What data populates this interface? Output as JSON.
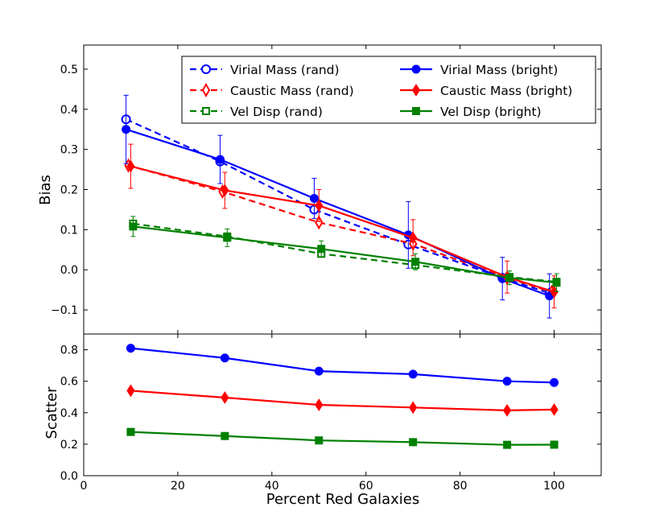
{
  "chart_data": [
    {
      "type": "line",
      "panel": "top",
      "ylabel": "Bias",
      "xlabel": "",
      "xlim": [
        0,
        110
      ],
      "ylim": [
        -0.16,
        0.56
      ],
      "xticks": [
        0,
        20,
        40,
        60,
        80,
        100
      ],
      "yticks": [
        -0.1,
        0.0,
        0.1,
        0.2,
        0.3,
        0.4,
        0.5
      ],
      "ytick_labels": [
        "−0.1",
        "0.0",
        "0.1",
        "0.2",
        "0.3",
        "0.4",
        "0.5"
      ],
      "legend_position": "top-right",
      "series": [
        {
          "name": "Virial Mass (rand)",
          "color": "#0000ff",
          "style": "dashed",
          "marker": "circle-open",
          "x": [
            9,
            29,
            49,
            69,
            89,
            99
          ],
          "y": [
            0.375,
            0.27,
            0.15,
            0.063,
            -0.02,
            -0.058
          ]
        },
        {
          "name": "Caustic Mass (rand)",
          "color": "#ff0000",
          "style": "dashed",
          "marker": "diamond-open",
          "x": [
            9.5,
            29.5,
            50,
            70,
            90,
            99.5
          ],
          "y": [
            0.26,
            0.195,
            0.118,
            0.065,
            -0.02,
            -0.055
          ]
        },
        {
          "name": "Vel Disp (rand)",
          "color": "#008000",
          "style": "dashed",
          "marker": "square-open",
          "x": [
            10.5,
            30.5,
            50.5,
            70.5,
            90.5,
            100.5
          ],
          "y": [
            0.115,
            0.083,
            0.04,
            0.012,
            -0.018,
            -0.03
          ]
        },
        {
          "name": "Virial Mass (bright)",
          "color": "#0000ff",
          "style": "solid",
          "marker": "circle",
          "x": [
            9,
            29,
            49,
            69,
            89,
            99
          ],
          "y": [
            0.35,
            0.275,
            0.178,
            0.087,
            -0.022,
            -0.065
          ],
          "err": [
            0.085,
            0.06,
            0.05,
            0.083,
            0.053,
            0.055
          ]
        },
        {
          "name": "Caustic Mass (bright)",
          "color": "#ff0000",
          "style": "solid",
          "marker": "diamond",
          "x": [
            10,
            30,
            50,
            70,
            90,
            100
          ],
          "y": [
            0.258,
            0.198,
            0.16,
            0.08,
            -0.018,
            -0.055
          ],
          "err": [
            0.055,
            0.045,
            0.04,
            0.045,
            0.04,
            0.04
          ]
        },
        {
          "name": "Vel Disp (bright)",
          "color": "#008000",
          "style": "solid",
          "marker": "square",
          "x": [
            10.5,
            30.5,
            50.5,
            70.5,
            90.5,
            100.5
          ],
          "y": [
            0.108,
            0.08,
            0.052,
            0.02,
            -0.02,
            -0.032
          ],
          "err": [
            0.025,
            0.022,
            0.02,
            0.02,
            0.017,
            0.022
          ]
        }
      ]
    },
    {
      "type": "line",
      "panel": "bottom",
      "ylabel": "Scatter",
      "xlabel": "Percent Red Galaxies",
      "xlim": [
        0,
        110
      ],
      "ylim": [
        0.0,
        0.9
      ],
      "xticks": [
        0,
        20,
        40,
        60,
        80,
        100
      ],
      "yticks": [
        0.0,
        0.2,
        0.4,
        0.6,
        0.8
      ],
      "ytick_labels": [
        "0.0",
        "0.2",
        "0.4",
        "0.6",
        "0.8"
      ],
      "series": [
        {
          "name": "Virial Mass (bright)",
          "color": "#0000ff",
          "style": "solid",
          "marker": "circle",
          "x": [
            10,
            30,
            50,
            70,
            90,
            100
          ],
          "y": [
            0.81,
            0.748,
            0.664,
            0.645,
            0.6,
            0.592
          ]
        },
        {
          "name": "Caustic Mass (bright)",
          "color": "#ff0000",
          "style": "solid",
          "marker": "diamond",
          "x": [
            10,
            30,
            50,
            70,
            90,
            100
          ],
          "y": [
            0.54,
            0.496,
            0.45,
            0.433,
            0.415,
            0.42
          ]
        },
        {
          "name": "Vel Disp (bright)",
          "color": "#008000",
          "style": "solid",
          "marker": "square",
          "x": [
            10,
            30,
            50,
            70,
            90,
            100
          ],
          "y": [
            0.278,
            0.252,
            0.224,
            0.213,
            0.196,
            0.197
          ]
        }
      ]
    }
  ],
  "legend": [
    {
      "label": "Virial Mass (rand)",
      "series_ref": "Virial Mass (rand)"
    },
    {
      "label": "Caustic Mass (rand)",
      "series_ref": "Caustic Mass (rand)"
    },
    {
      "label": "Vel Disp (rand)",
      "series_ref": "Vel Disp (rand)"
    },
    {
      "label": "Virial Mass (bright)",
      "series_ref": "Virial Mass (bright)"
    },
    {
      "label": "Caustic Mass (bright)",
      "series_ref": "Caustic Mass (bright)"
    },
    {
      "label": "Vel Disp (bright)",
      "series_ref": "Vel Disp (bright)"
    }
  ]
}
